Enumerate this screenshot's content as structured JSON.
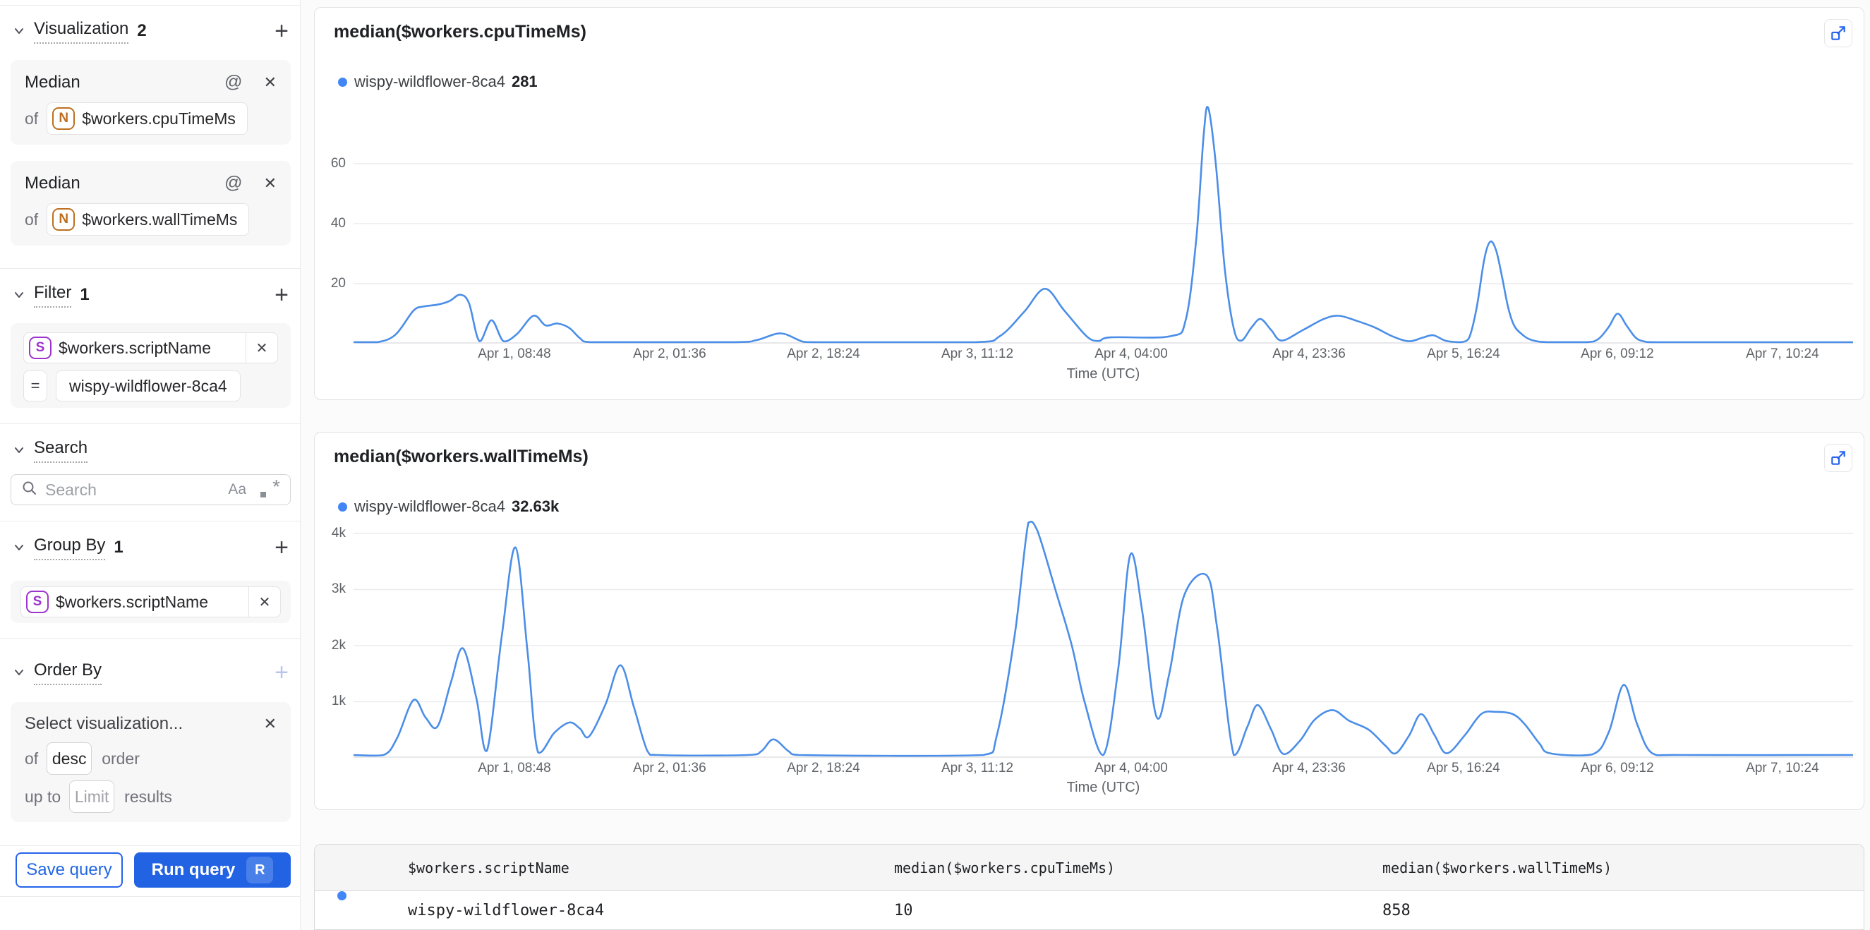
{
  "sidebar": {
    "visualization": {
      "title": "Visualization",
      "count": "2",
      "add": "+"
    },
    "visualizations": [
      {
        "fn": "Median",
        "of": "of",
        "field": "$workers.cpuTimeMs",
        "type_letter": "N"
      },
      {
        "fn": "Median",
        "of": "of",
        "field": "$workers.wallTimeMs",
        "type_letter": "N"
      }
    ],
    "filter": {
      "title": "Filter",
      "count": "1",
      "add": "+"
    },
    "filters": [
      {
        "field": "$workers.scriptName",
        "type_letter": "S",
        "op": "=",
        "value": "wispy-wildflower-8ca4"
      }
    ],
    "search": {
      "title": "Search",
      "placeholder": "Search",
      "case_icon": "Aa",
      "regex_star": "*"
    },
    "group_by": {
      "title": "Group By",
      "count": "1",
      "add": "+"
    },
    "group_bys": [
      {
        "field": "$workers.scriptName",
        "type_letter": "S"
      }
    ],
    "order_by": {
      "title": "Order By",
      "add": "+",
      "placeholder": "Select visualization...",
      "of_label": "of",
      "order_value": "desc",
      "order_label": "order",
      "up_to_label": "up to",
      "limit_placeholder": "Limit",
      "results_label": "results"
    },
    "buttons": {
      "save": "Save query",
      "run": "Run query",
      "run_shortcut": "R"
    }
  },
  "colors": {
    "accent_blue": "#2263e4",
    "line_blue": "#4b8ee8",
    "dot_blue": "#4285f4",
    "number_token_orange": "#bd6f1f",
    "string_token_purple": "#9d34cc"
  },
  "chart_data": [
    {
      "type": "line",
      "title": "median($workers.cpuTimeMs)",
      "legend": {
        "name": "wispy-wildflower-8ca4",
        "value": "281"
      },
      "xlabel": "Time (UTC)",
      "ylim": [
        0,
        81.4
      ],
      "y_ticks": [
        {
          "label": "20",
          "value": 20
        },
        {
          "label": "40",
          "value": 40
        },
        {
          "label": "60",
          "value": 60
        }
      ],
      "x_ticks": [
        {
          "label": "Apr 1, 08:48",
          "f": 0.1073
        },
        {
          "label": "Apr 2, 01:36",
          "f": 0.2108
        },
        {
          "label": "Apr 2, 18:24",
          "f": 0.3134
        },
        {
          "label": "Apr 3, 11:12",
          "f": 0.416
        },
        {
          "label": "Apr 4, 04:00",
          "f": 0.5186
        },
        {
          "label": "Apr 4, 23:36",
          "f": 0.6372
        },
        {
          "label": "Apr 5, 16:24",
          "f": 0.7402
        },
        {
          "label": "Apr 6, 09:12",
          "f": 0.8428
        },
        {
          "label": "Apr 7, 10:24",
          "f": 0.9529
        }
      ],
      "series": [
        {
          "name": "wispy-wildflower-8ca4",
          "points": [
            [
              0.0,
              0.5
            ],
            [
              0.016,
              0.5
            ],
            [
              0.028,
              3
            ],
            [
              0.04,
              11
            ],
            [
              0.047,
              12.4
            ],
            [
              0.056,
              13.0
            ],
            [
              0.064,
              14.2
            ],
            [
              0.071,
              16.3
            ],
            [
              0.077,
              13.5
            ],
            [
              0.084,
              0.8
            ],
            [
              0.092,
              7.8
            ],
            [
              0.1,
              0.8
            ],
            [
              0.109,
              3.2
            ],
            [
              0.12,
              9.3
            ],
            [
              0.128,
              6.1
            ],
            [
              0.136,
              6.7
            ],
            [
              0.144,
              5.2
            ],
            [
              0.151,
              1.8
            ],
            [
              0.158,
              0.5
            ],
            [
              0.254,
              0.5
            ],
            [
              0.269,
              1.2
            ],
            [
              0.285,
              3.4
            ],
            [
              0.3,
              0.6
            ],
            [
              0.311,
              0.45
            ],
            [
              0.414,
              0.45
            ],
            [
              0.431,
              2.5
            ],
            [
              0.447,
              10.5
            ],
            [
              0.461,
              18.3
            ],
            [
              0.474,
              11
            ],
            [
              0.489,
              2.4
            ],
            [
              0.497,
              0.9
            ],
            [
              0.505,
              2.1
            ],
            [
              0.545,
              2.5
            ],
            [
              0.555,
              8
            ],
            [
              0.562,
              35
            ],
            [
              0.567,
              70
            ],
            [
              0.57,
              78.5
            ],
            [
              0.575,
              60
            ],
            [
              0.581,
              25
            ],
            [
              0.587,
              5
            ],
            [
              0.592,
              1.0
            ],
            [
              0.599,
              5.5
            ],
            [
              0.605,
              8.2
            ],
            [
              0.612,
              4.5
            ],
            [
              0.619,
              1.0
            ],
            [
              0.633,
              4.5
            ],
            [
              0.647,
              8.2
            ],
            [
              0.657,
              9.3
            ],
            [
              0.669,
              7.6
            ],
            [
              0.681,
              5.4
            ],
            [
              0.693,
              2.4
            ],
            [
              0.704,
              0.8
            ],
            [
              0.713,
              2.0
            ],
            [
              0.72,
              2.8
            ],
            [
              0.728,
              1.0
            ],
            [
              0.736,
              0.5
            ],
            [
              0.739,
              0.5
            ],
            [
              0.744,
              2
            ],
            [
              0.749,
              12
            ],
            [
              0.754,
              28
            ],
            [
              0.758,
              34
            ],
            [
              0.762,
              31
            ],
            [
              0.766,
              22
            ],
            [
              0.77,
              12
            ],
            [
              0.774,
              6
            ],
            [
              0.779,
              3.2
            ],
            [
              0.784,
              1.5
            ],
            [
              0.79,
              0.7
            ],
            [
              0.797,
              0.5
            ],
            [
              0.822,
              0.5
            ],
            [
              0.83,
              1.5
            ],
            [
              0.837,
              5.5
            ],
            [
              0.843,
              10
            ],
            [
              0.849,
              6
            ],
            [
              0.855,
              2
            ],
            [
              0.861,
              0.7
            ],
            [
              0.87,
              0.45
            ],
            [
              1.0,
              0.45
            ]
          ]
        }
      ]
    },
    {
      "type": "line",
      "title": "median($workers.wallTimeMs)",
      "legend": {
        "name": "wispy-wildflower-8ca4",
        "value": "32.63k"
      },
      "xlabel": "Time (UTC)",
      "ylim": [
        0,
        4.25
      ],
      "y_ticks": [
        {
          "label": "1k",
          "value": 1
        },
        {
          "label": "2k",
          "value": 2
        },
        {
          "label": "3k",
          "value": 3
        },
        {
          "label": "4k",
          "value": 4
        }
      ],
      "x_ticks": [
        {
          "label": "Apr 1, 08:48",
          "f": 0.1073
        },
        {
          "label": "Apr 2, 01:36",
          "f": 0.2108
        },
        {
          "label": "Apr 2, 18:24",
          "f": 0.3134
        },
        {
          "label": "Apr 3, 11:12",
          "f": 0.416
        },
        {
          "label": "Apr 4, 04:00",
          "f": 0.5186
        },
        {
          "label": "Apr 4, 23:36",
          "f": 0.6372
        },
        {
          "label": "Apr 5, 16:24",
          "f": 0.7402
        },
        {
          "label": "Apr 6, 09:12",
          "f": 0.8428
        },
        {
          "label": "Apr 7, 10:24",
          "f": 0.9529
        }
      ],
      "series": [
        {
          "name": "wispy-wildflower-8ca4",
          "points": [
            [
              0.0,
              0.05
            ],
            [
              0.02,
              0.05
            ],
            [
              0.029,
              0.35
            ],
            [
              0.04,
              1.03
            ],
            [
              0.048,
              0.72
            ],
            [
              0.056,
              0.56
            ],
            [
              0.065,
              1.35
            ],
            [
              0.073,
              1.95
            ],
            [
              0.082,
              1.05
            ],
            [
              0.089,
              0.13
            ],
            [
              0.099,
              2.2
            ],
            [
              0.108,
              3.75
            ],
            [
              0.116,
              1.9
            ],
            [
              0.123,
              0.1
            ],
            [
              0.134,
              0.45
            ],
            [
              0.144,
              0.63
            ],
            [
              0.151,
              0.52
            ],
            [
              0.157,
              0.38
            ],
            [
              0.168,
              0.95
            ],
            [
              0.178,
              1.65
            ],
            [
              0.187,
              0.9
            ],
            [
              0.196,
              0.12
            ],
            [
              0.203,
              0.05
            ],
            [
              0.263,
              0.05
            ],
            [
              0.272,
              0.12
            ],
            [
              0.28,
              0.33
            ],
            [
              0.29,
              0.12
            ],
            [
              0.297,
              0.05
            ],
            [
              0.42,
              0.05
            ],
            [
              0.429,
              0.4
            ],
            [
              0.441,
              2.2
            ],
            [
              0.45,
              4.19
            ],
            [
              0.456,
              4.05
            ],
            [
              0.468,
              3.0
            ],
            [
              0.479,
              2.0
            ],
            [
              0.4875,
              1.0
            ],
            [
              0.5,
              0.05
            ],
            [
              0.51,
              1.6
            ],
            [
              0.518,
              3.62
            ],
            [
              0.526,
              2.6
            ],
            [
              0.5355,
              0.73
            ],
            [
              0.544,
              1.5
            ],
            [
              0.554,
              2.9
            ],
            [
              0.569,
              3.25
            ],
            [
              0.576,
              2.3
            ],
            [
              0.587,
              0.05
            ],
            [
              0.596,
              0.55
            ],
            [
              0.603,
              0.94
            ],
            [
              0.612,
              0.5
            ],
            [
              0.62,
              0.07
            ],
            [
              0.631,
              0.3
            ],
            [
              0.641,
              0.68
            ],
            [
              0.653,
              0.85
            ],
            [
              0.664,
              0.66
            ],
            [
              0.677,
              0.5
            ],
            [
              0.688,
              0.22
            ],
            [
              0.695,
              0.08
            ],
            [
              0.704,
              0.4
            ],
            [
              0.712,
              0.78
            ],
            [
              0.721,
              0.4
            ],
            [
              0.729,
              0.08
            ],
            [
              0.741,
              0.4
            ],
            [
              0.752,
              0.78
            ],
            [
              0.762,
              0.82
            ],
            [
              0.773,
              0.78
            ],
            [
              0.781,
              0.6
            ],
            [
              0.791,
              0.25
            ],
            [
              0.798,
              0.08
            ],
            [
              0.826,
              0.06
            ],
            [
              0.837,
              0.45
            ],
            [
              0.847,
              1.3
            ],
            [
              0.856,
              0.6
            ],
            [
              0.866,
              0.08
            ],
            [
              0.885,
              0.05
            ],
            [
              1.0,
              0.05
            ]
          ]
        }
      ]
    }
  ],
  "table": {
    "columns": [
      "$workers.scriptName",
      "median($workers.cpuTimeMs)",
      "median($workers.wallTimeMs)"
    ],
    "rows": [
      {
        "cells": [
          "wispy-wildflower-8ca4",
          "10",
          "858"
        ]
      }
    ]
  }
}
